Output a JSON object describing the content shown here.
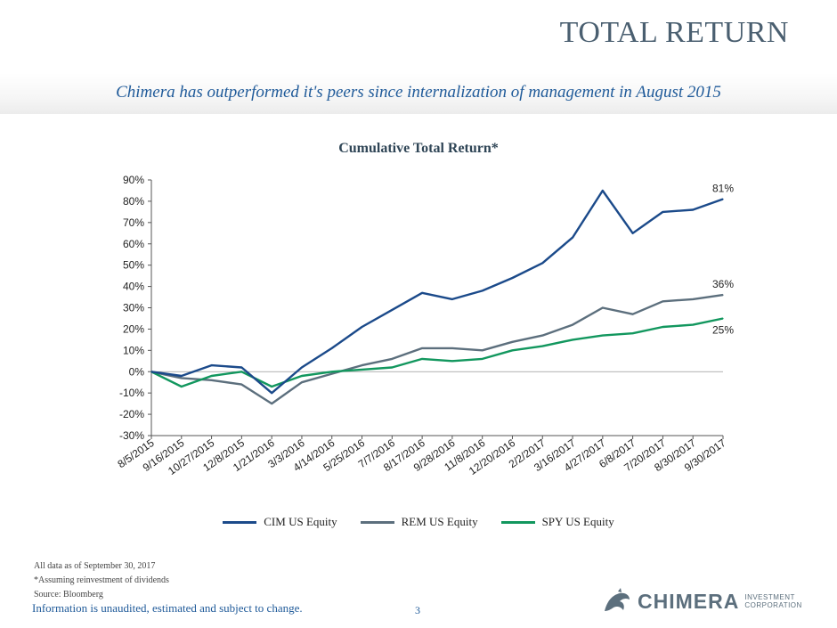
{
  "header": {
    "title": "TOTAL RETURN",
    "subtitle": "Chimera has outperformed it's peers since internalization of management in August 2015"
  },
  "chart_data": {
    "type": "line",
    "title": "Cumulative Total Return*",
    "xlabel": "",
    "ylabel": "",
    "ylim": [
      -30,
      90
    ],
    "y_ticks": [
      "-30%",
      "-20%",
      "-10%",
      "0%",
      "10%",
      "20%",
      "30%",
      "40%",
      "50%",
      "60%",
      "70%",
      "80%",
      "90%"
    ],
    "x_ticks": [
      "8/5/2015",
      "9/16/2015",
      "10/27/2015",
      "12/8/2015",
      "1/21/2016",
      "3/3/2016",
      "4/14/2016",
      "5/25/2016",
      "7/7/2016",
      "8/17/2016",
      "9/28/2016",
      "11/8/2016",
      "12/20/2016",
      "2/2/2017",
      "3/16/2017",
      "4/27/2017",
      "6/8/2017",
      "7/20/2017",
      "8/30/2017",
      "9/30/2017"
    ],
    "grid": false,
    "legend_position": "bottom",
    "x": [
      "8/5/2015",
      "9/16/2015",
      "10/27/2015",
      "12/8/2015",
      "1/21/2016",
      "3/3/2016",
      "4/14/2016",
      "5/25/2016",
      "7/7/2016",
      "8/17/2016",
      "9/28/2016",
      "11/8/2016",
      "12/20/2016",
      "2/2/2017",
      "3/16/2017",
      "4/27/2017",
      "6/8/2017",
      "7/20/2017",
      "8/30/2017",
      "9/30/2017"
    ],
    "series": [
      {
        "name": "CIM US Equity",
        "color": "#1b4a8a",
        "end_label": "81%",
        "values": [
          0,
          -2,
          3,
          2,
          -10,
          2,
          11,
          21,
          29,
          37,
          34,
          38,
          44,
          51,
          63,
          85,
          65,
          75,
          76,
          81
        ]
      },
      {
        "name": "REM US Equity",
        "color": "#5c6f7d",
        "end_label": "36%",
        "values": [
          0,
          -3,
          -4,
          -6,
          -15,
          -5,
          -1,
          3,
          6,
          11,
          11,
          10,
          14,
          17,
          22,
          30,
          27,
          33,
          34,
          36
        ]
      },
      {
        "name": "SPY US Equity",
        "color": "#12975e",
        "end_label": "25%",
        "values": [
          0,
          -7,
          -2,
          0,
          -7,
          -2,
          0,
          1,
          2,
          6,
          5,
          6,
          10,
          12,
          15,
          17,
          18,
          21,
          22,
          25
        ]
      }
    ]
  },
  "footer": {
    "note_1": "All data as of September 30, 2017",
    "note_2": "*Assuming reinvestment of dividends",
    "note_3": "Source: Bloomberg",
    "disclaimer": "Information is unaudited, estimated and subject to change.",
    "page_number": "3",
    "logo_word": "CHIMERA",
    "logo_sub_1": "INVESTMENT",
    "logo_sub_2": "CORPORATION"
  }
}
